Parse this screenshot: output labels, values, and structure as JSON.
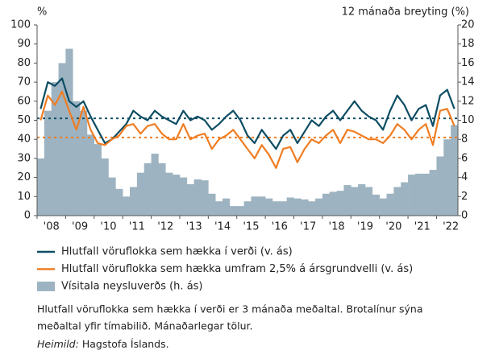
{
  "chart_data": {
    "type": "bar_line",
    "y_label": "%",
    "y2_label": "12 mánaða breyting (%)",
    "categories": [
      null,
      "'08",
      null,
      null,
      null,
      "'09",
      null,
      null,
      null,
      "'10",
      null,
      null,
      null,
      "'11",
      null,
      null,
      null,
      "'12",
      null,
      null,
      null,
      "'13",
      null,
      null,
      null,
      "'14",
      null,
      null,
      null,
      "'15",
      null,
      null,
      null,
      "'16",
      null,
      null,
      null,
      "'17",
      null,
      null,
      null,
      "'18",
      null,
      null,
      null,
      "'19",
      null,
      null,
      null,
      "'20",
      null,
      null,
      null,
      "'21",
      null,
      null,
      null,
      "'22",
      null
    ],
    "series": [
      {
        "name": "Vísitala neysluverðs (h. ás)",
        "kind": "bar",
        "axis": "y2",
        "color": "#9db3c1",
        "values": [
          6,
          11,
          14,
          16,
          17.5,
          12,
          11,
          8.5,
          7.5,
          6,
          4,
          2.8,
          2,
          3,
          4.5,
          5.5,
          6.5,
          5.5,
          4.5,
          4.3,
          4,
          3.3,
          3.8,
          3.7,
          2.3,
          1.5,
          1.8,
          1,
          1,
          1.5,
          2,
          2,
          1.8,
          1.5,
          1.5,
          1.9,
          1.8,
          1.7,
          1.5,
          1.8,
          2.3,
          2.5,
          2.6,
          3.2,
          3,
          3.3,
          3,
          2.2,
          1.8,
          2.3,
          3,
          3.5,
          4.3,
          4.4,
          4.4,
          4.8,
          6.2,
          8,
          9.5
        ]
      },
      {
        "name": "Hlutfall vöruflokka sem hækka í verði (v. ás)",
        "kind": "line",
        "color": "#0d4d63",
        "values": [
          56,
          70,
          68,
          72,
          60,
          57,
          60,
          52,
          45,
          38,
          40,
          44,
          48,
          55,
          52,
          50,
          55,
          52,
          50,
          48,
          55,
          50,
          52,
          50,
          45,
          48,
          52,
          55,
          50,
          42,
          38,
          45,
          40,
          35,
          42,
          45,
          38,
          44,
          50,
          47,
          52,
          55,
          50,
          55,
          60,
          55,
          52,
          50,
          45,
          55,
          63,
          58,
          50,
          56,
          58,
          47,
          63,
          66,
          56
        ]
      },
      {
        "name": "Hlutfall vöruflokka sem hækka umfram 2,5% á ársgrundvelli (v. ás)",
        "kind": "line",
        "color": "#f07d22",
        "values": [
          50,
          63,
          58,
          65,
          55,
          45,
          57,
          45,
          38,
          37,
          40,
          42,
          47,
          48,
          43,
          47,
          48,
          43,
          40,
          40,
          48,
          40,
          42,
          43,
          35,
          40,
          42,
          45,
          40,
          35,
          30,
          37,
          32,
          25,
          35,
          36,
          28,
          35,
          40,
          38,
          42,
          45,
          38,
          45,
          44,
          42,
          40,
          40,
          38,
          42,
          48,
          45,
          40,
          45,
          48,
          37,
          55,
          56,
          47
        ]
      }
    ],
    "ref_lines": [
      {
        "value": 51,
        "color": "#0d4d63"
      },
      {
        "value": 41,
        "color": "#f07d22"
      }
    ],
    "ylim": [
      0,
      100
    ],
    "yticks": [
      0,
      10,
      20,
      30,
      40,
      50,
      60,
      70,
      80,
      90,
      100
    ],
    "y2lim": [
      0,
      20
    ],
    "y2ticks": [
      0,
      2,
      4,
      6,
      8,
      10,
      12,
      14,
      16,
      18,
      20
    ],
    "legend_order": [
      1,
      2,
      0
    ],
    "notes": [
      "Hlutfall vöruflokka sem hækka í verði er 3 mánaða meðaltal. Brotalínur sýna",
      "meðaltal yfir tímabilið. Mánaðarlegar tölur."
    ],
    "source_label": "Heimild:",
    "source": "Hagstofa Íslands."
  }
}
